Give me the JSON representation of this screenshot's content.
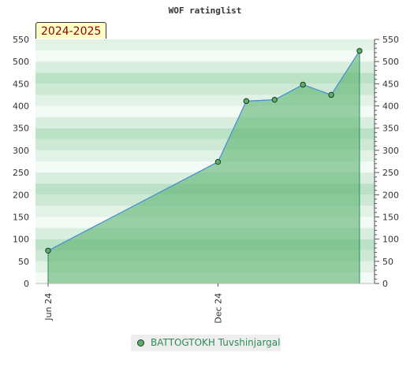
{
  "chart_data": {
    "type": "area",
    "title": "WOF ratinglist",
    "season_label": "2024-2025",
    "y_ticks": [
      0,
      50,
      100,
      150,
      200,
      250,
      300,
      350,
      400,
      450,
      500,
      550
    ],
    "ylim": [
      0,
      550
    ],
    "x_ticks": [
      {
        "label": "Jun 24",
        "x": 0
      },
      {
        "label": "Dec 24",
        "x": 6
      }
    ],
    "xlim": [
      0,
      11
    ],
    "series": [
      {
        "name": "BATTOGTOKH Tuvshinjargal",
        "points": [
          {
            "x": 0,
            "y": 74
          },
          {
            "x": 6,
            "y": 274
          },
          {
            "x": 7,
            "y": 411
          },
          {
            "x": 8,
            "y": 414
          },
          {
            "x": 9,
            "y": 448
          },
          {
            "x": 10,
            "y": 425
          },
          {
            "x": 11,
            "y": 524
          }
        ]
      }
    ],
    "grid": true,
    "legend_position": "bottom",
    "colors": {
      "area": "#5cb370",
      "line": "#4a90d9",
      "marker": "#5fae6c"
    }
  }
}
